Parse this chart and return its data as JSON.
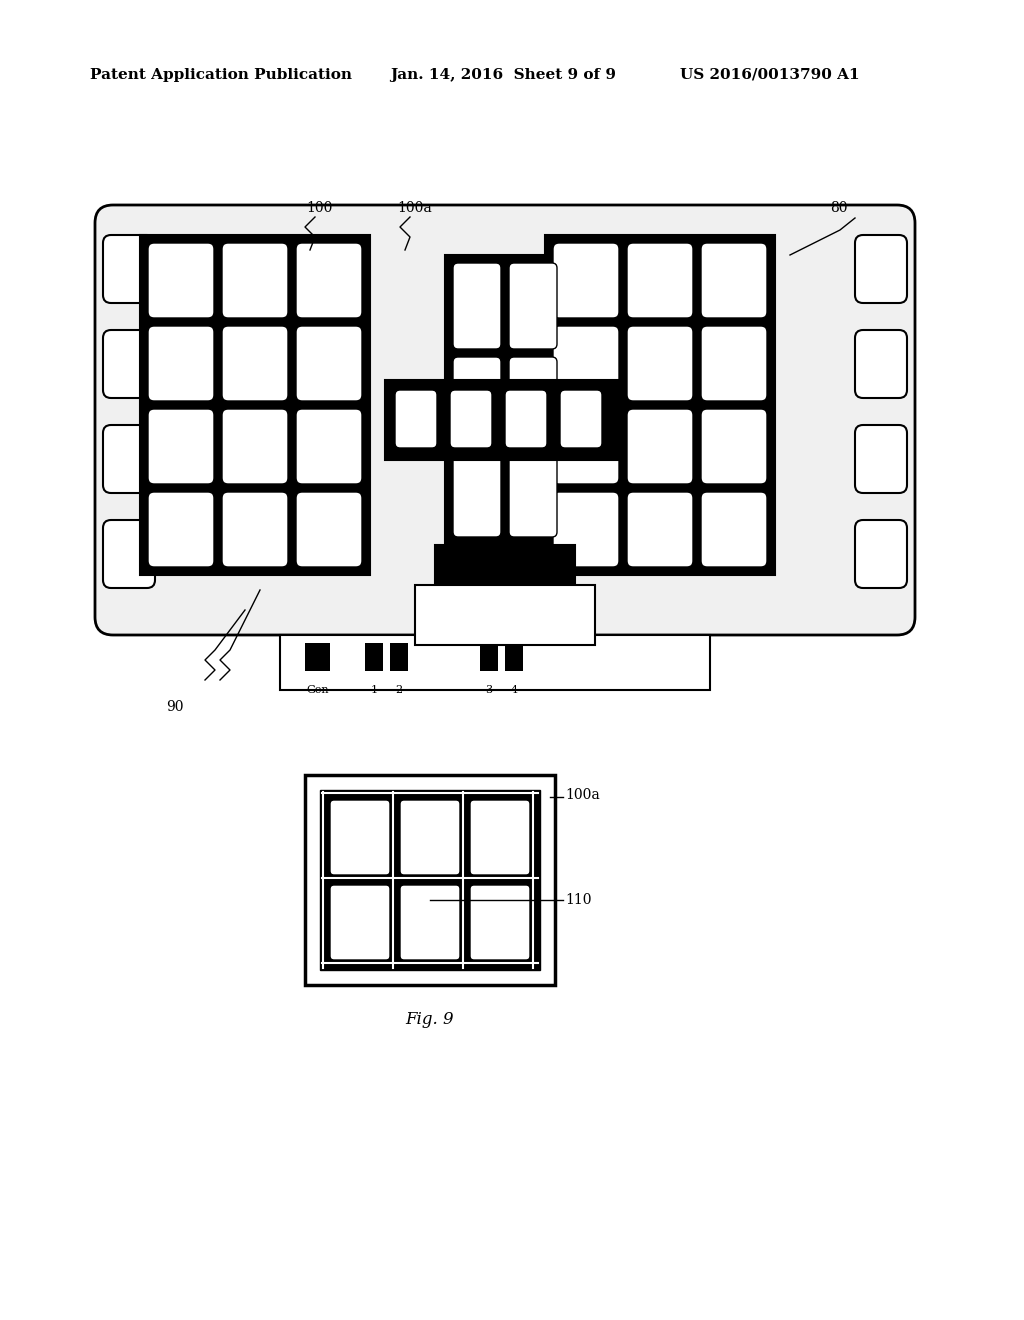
{
  "bg_color": "#ffffff",
  "header_text_left": "Patent Application Publication",
  "header_text_mid": "Jan. 14, 2016  Sheet 9 of 9",
  "header_text_right": "US 2016/0013790 A1",
  "fig_label": "Fig. 9",
  "label_100": "100",
  "label_100a": "100a",
  "label_80": "80",
  "label_90": "90",
  "label_110": "110",
  "connector_labels": [
    "Gen",
    "1",
    "2",
    "3",
    "4"
  ]
}
